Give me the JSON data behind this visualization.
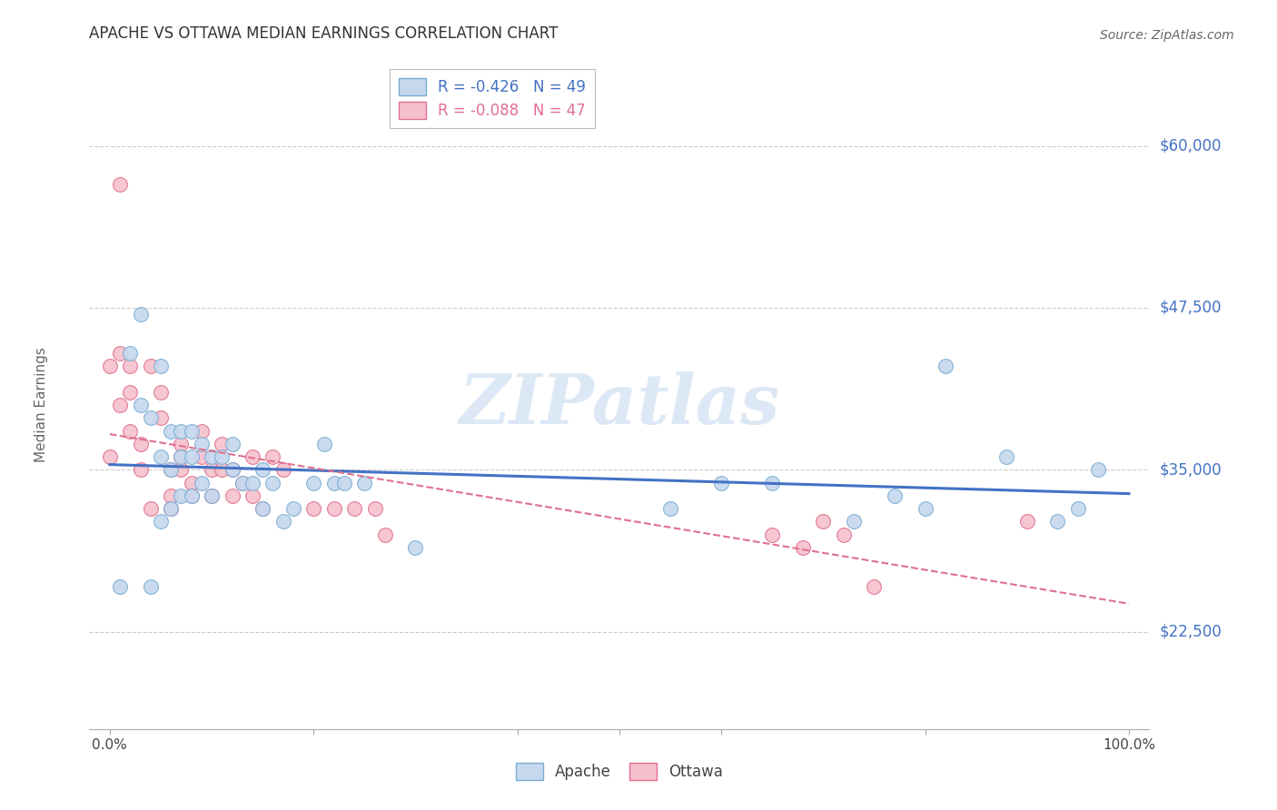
{
  "title": "APACHE VS OTTAWA MEDIAN EARNINGS CORRELATION CHART",
  "source": "Source: ZipAtlas.com",
  "ylabel": "Median Earnings",
  "background_color": "#ffffff",
  "title_color": "#333333",
  "source_color": "#666666",
  "axis_label_color": "#666666",
  "ytick_color": "#4472c4",
  "xtick_color": "#444444",
  "grid_color": "#cccccc",
  "watermark_text": "ZIPatlas",
  "watermark_color": "#dce8f5",
  "legend_r1": "R = -0.426",
  "legend_n1": "N = 49",
  "legend_r2": "R = -0.088",
  "legend_n2": "N = 47",
  "apache_color": "#c5d8ee",
  "apache_edge_color": "#7aadd4",
  "ottawa_color": "#f5c0cc",
  "ottawa_edge_color": "#e07090",
  "apache_line_color": "#4472c4",
  "ottawa_line_color": "#e07090",
  "ylim_min": 15000,
  "ylim_max": 65000,
  "yticks": [
    22500,
    35000,
    47500,
    60000
  ],
  "xlim_min": -0.02,
  "xlim_max": 1.02,
  "apache_x": [
    0.01,
    0.02,
    0.03,
    0.03,
    0.04,
    0.04,
    0.05,
    0.05,
    0.05,
    0.06,
    0.06,
    0.06,
    0.07,
    0.07,
    0.07,
    0.08,
    0.08,
    0.08,
    0.09,
    0.09,
    0.1,
    0.1,
    0.11,
    0.12,
    0.12,
    0.13,
    0.14,
    0.15,
    0.15,
    0.16,
    0.17,
    0.18,
    0.2,
    0.21,
    0.22,
    0.23,
    0.25,
    0.3,
    0.55,
    0.6,
    0.65,
    0.73,
    0.77,
    0.8,
    0.82,
    0.88,
    0.93,
    0.95,
    0.97
  ],
  "apache_y": [
    26000,
    44000,
    40000,
    47000,
    39000,
    26000,
    43000,
    36000,
    31000,
    38000,
    35000,
    32000,
    38000,
    36000,
    33000,
    38000,
    36000,
    33000,
    37000,
    34000,
    36000,
    33000,
    36000,
    37000,
    35000,
    34000,
    34000,
    35000,
    32000,
    34000,
    31000,
    32000,
    34000,
    37000,
    34000,
    34000,
    34000,
    29000,
    32000,
    34000,
    34000,
    31000,
    33000,
    32000,
    43000,
    36000,
    31000,
    32000,
    35000
  ],
  "ottawa_x": [
    0.0,
    0.0,
    0.01,
    0.01,
    0.01,
    0.02,
    0.02,
    0.02,
    0.03,
    0.03,
    0.04,
    0.04,
    0.05,
    0.05,
    0.06,
    0.06,
    0.06,
    0.07,
    0.07,
    0.07,
    0.08,
    0.08,
    0.09,
    0.09,
    0.1,
    0.1,
    0.11,
    0.11,
    0.12,
    0.12,
    0.13,
    0.14,
    0.14,
    0.15,
    0.16,
    0.17,
    0.2,
    0.22,
    0.24,
    0.26,
    0.27,
    0.65,
    0.68,
    0.7,
    0.72,
    0.75,
    0.9
  ],
  "ottawa_y": [
    43000,
    36000,
    57000,
    44000,
    40000,
    43000,
    41000,
    38000,
    37000,
    35000,
    43000,
    32000,
    41000,
    39000,
    35000,
    33000,
    32000,
    37000,
    36000,
    35000,
    34000,
    33000,
    38000,
    36000,
    35000,
    33000,
    37000,
    35000,
    35000,
    33000,
    34000,
    36000,
    33000,
    32000,
    36000,
    35000,
    32000,
    32000,
    32000,
    32000,
    30000,
    30000,
    29000,
    31000,
    30000,
    26000,
    31000
  ]
}
